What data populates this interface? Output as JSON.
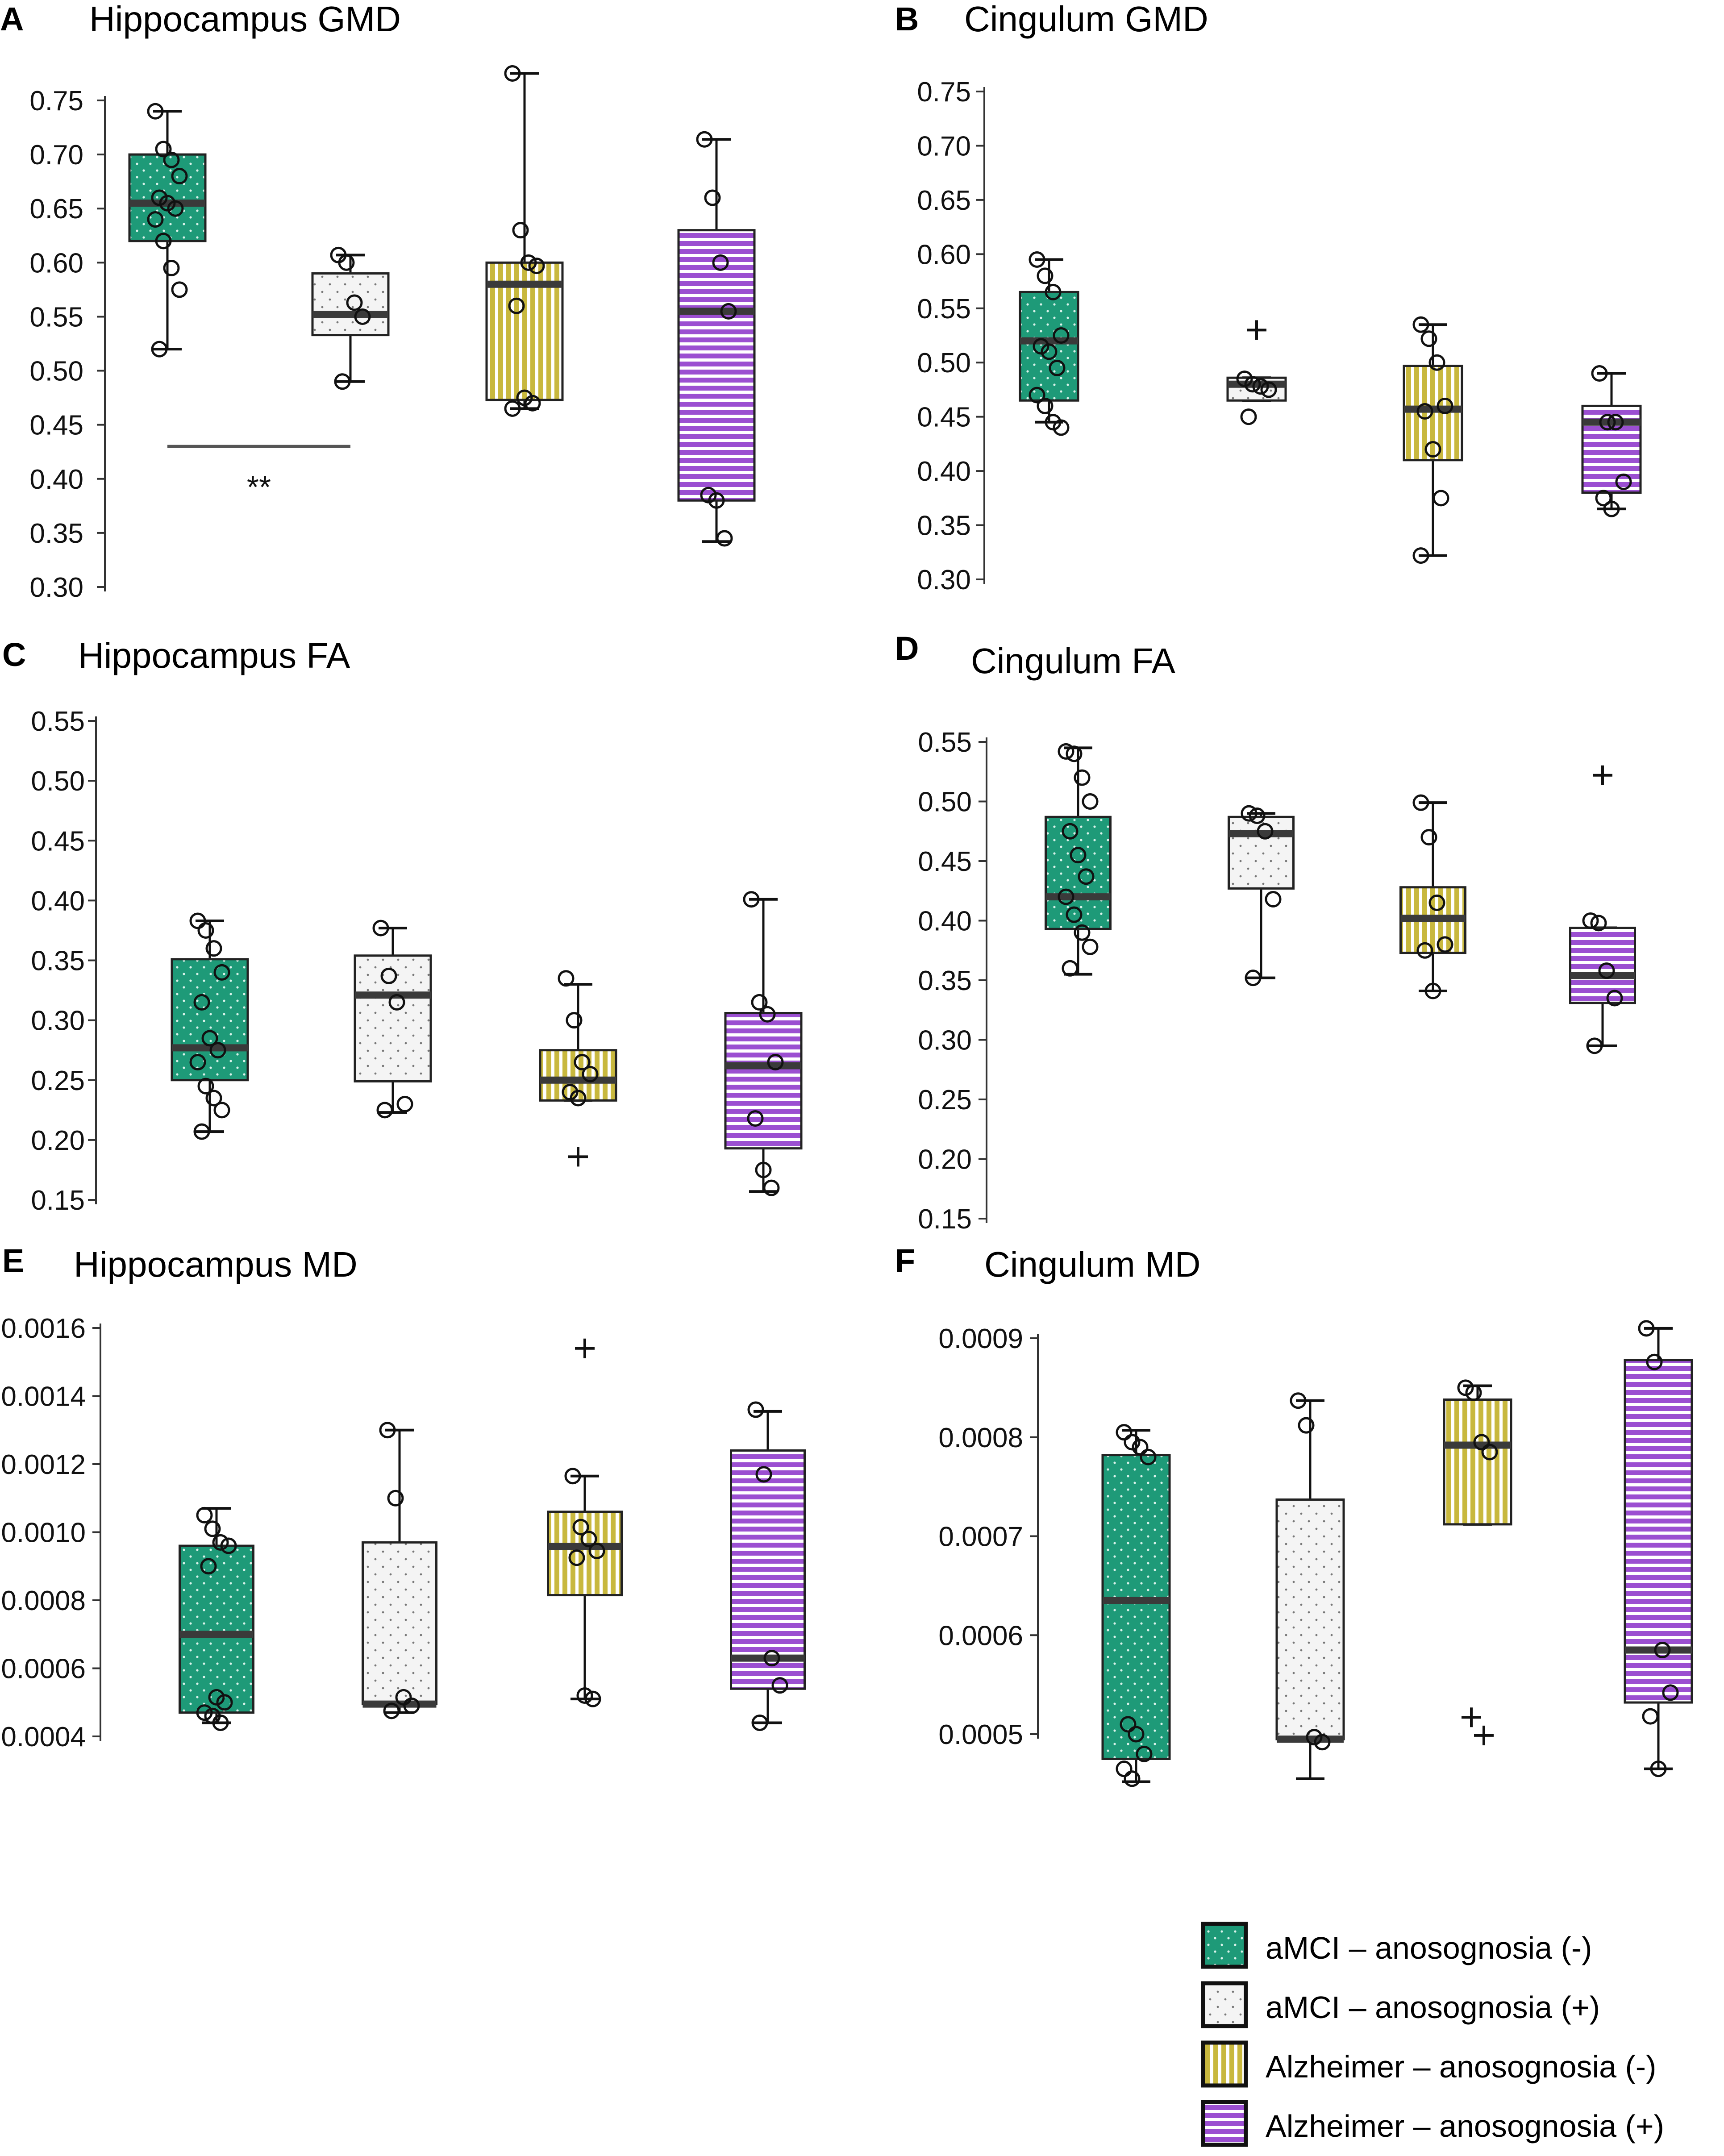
{
  "colors": {
    "group1": "#1e9a78",
    "group2": "#f2f2f2",
    "group3": "#c8b83e",
    "group4": "#9b4fd1",
    "median": "#3a3a3a",
    "line": "#111111",
    "sigbar": "#555555"
  },
  "legend": {
    "items": [
      {
        "label": "aMCI – anosognosia (-)",
        "pattern": "dots",
        "color_key": "group1"
      },
      {
        "label": "aMCI – anosognosia (+)",
        "pattern": "sparse-dots",
        "color_key": "group2"
      },
      {
        "label": "Alzheimer – anosognosia (-)",
        "pattern": "vertical-stripes",
        "color_key": "group3"
      },
      {
        "label": "Alzheimer – anosognosia (+)",
        "pattern": "horizontal-stripes",
        "color_key": "group4"
      }
    ]
  },
  "chart_data": [
    {
      "id": "A",
      "letter": "A",
      "title": "Hippocampus  GMD",
      "type": "box",
      "ylim": [
        0.3,
        0.75
      ],
      "yticks": [
        "0.30",
        "0.35",
        "0.40",
        "0.45",
        "0.50",
        "0.55",
        "0.60",
        "0.65",
        "0.70",
        "0.75"
      ],
      "significance": {
        "from_group": 1,
        "to_group": 2,
        "y": 0.43,
        "label": "**"
      },
      "groups": [
        {
          "q1": 0.62,
          "median": 0.655,
          "q3": 0.7,
          "whisker_low": 0.52,
          "whisker_high": 0.74,
          "points": [
            0.74,
            0.705,
            0.695,
            0.68,
            0.66,
            0.655,
            0.65,
            0.64,
            0.62,
            0.595,
            0.575,
            0.52
          ],
          "outliers": []
        },
        {
          "q1": 0.533,
          "median": 0.552,
          "q3": 0.59,
          "whisker_low": 0.49,
          "whisker_high": 0.607,
          "points": [
            0.607,
            0.6,
            0.563,
            0.55,
            0.49
          ],
          "outliers": []
        },
        {
          "q1": 0.473,
          "median": 0.58,
          "q3": 0.6,
          "whisker_low": 0.465,
          "whisker_high": 0.775,
          "points": [
            0.775,
            0.63,
            0.6,
            0.597,
            0.56,
            0.475,
            0.47,
            0.465
          ],
          "outliers": []
        },
        {
          "q1": 0.38,
          "median": 0.555,
          "q3": 0.63,
          "whisker_low": 0.342,
          "whisker_high": 0.714,
          "points": [
            0.714,
            0.66,
            0.6,
            0.555,
            0.385,
            0.38,
            0.345
          ],
          "outliers": []
        }
      ]
    },
    {
      "id": "B",
      "letter": "B",
      "title": "Cingulum  GMD",
      "type": "box",
      "ylim": [
        0.3,
        0.75
      ],
      "yticks": [
        "0.30",
        "0.35",
        "0.40",
        "0.45",
        "0.50",
        "0.55",
        "0.60",
        "0.65",
        "0.70",
        "0.75"
      ],
      "groups": [
        {
          "q1": 0.465,
          "median": 0.52,
          "q3": 0.565,
          "whisker_low": 0.445,
          "whisker_high": 0.595,
          "points": [
            0.595,
            0.58,
            0.565,
            0.525,
            0.515,
            0.51,
            0.495,
            0.47,
            0.46,
            0.445,
            0.44
          ],
          "outliers": []
        },
        {
          "q1": 0.465,
          "median": 0.48,
          "q3": 0.486,
          "whisker_low": 0.465,
          "whisker_high": 0.486,
          "points": [
            0.485,
            0.48,
            0.478,
            0.475,
            0.45
          ],
          "outliers": [
            0.53
          ]
        },
        {
          "q1": 0.41,
          "median": 0.457,
          "q3": 0.497,
          "whisker_low": 0.322,
          "whisker_high": 0.535,
          "points": [
            0.535,
            0.522,
            0.5,
            0.46,
            0.455,
            0.42,
            0.375,
            0.322
          ],
          "outliers": []
        },
        {
          "q1": 0.38,
          "median": 0.445,
          "q3": 0.46,
          "whisker_low": 0.365,
          "whisker_high": 0.49,
          "points": [
            0.49,
            0.445,
            0.445,
            0.39,
            0.375,
            0.365
          ],
          "outliers": []
        }
      ]
    },
    {
      "id": "C",
      "letter": "C",
      "title": "Hippocampus  FA",
      "type": "box",
      "ylim": [
        0.15,
        0.55
      ],
      "yticks": [
        "0.15",
        "0.20",
        "0.25",
        "0.30",
        "0.35",
        "0.40",
        "0.45",
        "0.50",
        "0.55"
      ],
      "groups": [
        {
          "q1": 0.25,
          "median": 0.277,
          "q3": 0.351,
          "whisker_low": 0.207,
          "whisker_high": 0.383,
          "points": [
            0.383,
            0.375,
            0.36,
            0.34,
            0.315,
            0.285,
            0.275,
            0.265,
            0.245,
            0.235,
            0.225,
            0.207
          ],
          "outliers": []
        },
        {
          "q1": 0.249,
          "median": 0.321,
          "q3": 0.354,
          "whisker_low": 0.223,
          "whisker_high": 0.377,
          "points": [
            0.377,
            0.337,
            0.315,
            0.23,
            0.225
          ],
          "outliers": []
        },
        {
          "q1": 0.233,
          "median": 0.25,
          "q3": 0.275,
          "whisker_low": 0.233,
          "whisker_high": 0.33,
          "points": [
            0.335,
            0.3,
            0.265,
            0.255,
            0.24,
            0.235
          ],
          "outliers": [
            0.186
          ]
        },
        {
          "q1": 0.193,
          "median": 0.262,
          "q3": 0.306,
          "whisker_low": 0.157,
          "whisker_high": 0.401,
          "points": [
            0.401,
            0.315,
            0.305,
            0.265,
            0.218,
            0.175,
            0.16
          ],
          "outliers": []
        }
      ]
    },
    {
      "id": "D",
      "letter": "D",
      "title": "Cingulum  FA",
      "type": "box",
      "ylim": [
        0.15,
        0.55
      ],
      "yticks": [
        "0.15",
        "0.20",
        "0.25",
        "0.30",
        "0.35",
        "0.40",
        "0.45",
        "0.50",
        "0.55"
      ],
      "groups": [
        {
          "q1": 0.393,
          "median": 0.42,
          "q3": 0.487,
          "whisker_low": 0.355,
          "whisker_high": 0.545,
          "points": [
            0.542,
            0.54,
            0.52,
            0.5,
            0.475,
            0.455,
            0.437,
            0.42,
            0.405,
            0.39,
            0.378,
            0.36
          ],
          "outliers": []
        },
        {
          "q1": 0.427,
          "median": 0.473,
          "q3": 0.487,
          "whisker_low": 0.352,
          "whisker_high": 0.49,
          "points": [
            0.49,
            0.488,
            0.475,
            0.418,
            0.352
          ],
          "outliers": []
        },
        {
          "q1": 0.373,
          "median": 0.402,
          "q3": 0.428,
          "whisker_low": 0.341,
          "whisker_high": 0.499,
          "points": [
            0.499,
            0.47,
            0.415,
            0.38,
            0.375,
            0.341
          ],
          "outliers": []
        },
        {
          "q1": 0.331,
          "median": 0.354,
          "q3": 0.394,
          "whisker_low": 0.295,
          "whisker_high": 0.394,
          "points": [
            0.4,
            0.398,
            0.358,
            0.335,
            0.295
          ],
          "outliers": [
            0.522
          ]
        }
      ]
    },
    {
      "id": "E",
      "letter": "E",
      "title": "Hippocampus  MD",
      "type": "box",
      "ylim": [
        0.0004,
        0.0016
      ],
      "yticks": [
        "0.0004",
        "0.0006",
        "0.0008",
        "0.0010",
        "0.0012",
        "0.0014",
        "0.0016"
      ],
      "groups": [
        {
          "q1": 0.00047,
          "median": 0.0007,
          "q3": 0.00096,
          "whisker_low": 0.00044,
          "whisker_high": 0.00107,
          "points": [
            0.00105,
            0.00101,
            0.00097,
            0.00096,
            0.0009,
            0.000515,
            0.0005,
            0.00047,
            0.00046,
            0.00044
          ],
          "outliers": []
        },
        {
          "q1": 0.000495,
          "median": 0.000495,
          "q3": 0.00097,
          "whisker_low": 0.00047,
          "whisker_high": 0.0013,
          "points": [
            0.0013,
            0.0011,
            0.000515,
            0.00049,
            0.000475
          ],
          "outliers": []
        },
        {
          "q1": 0.000815,
          "median": 0.000958,
          "q3": 0.00106,
          "whisker_low": 0.00051,
          "whisker_high": 0.001165,
          "points": [
            0.001165,
            0.001015,
            0.00098,
            0.000945,
            0.000925,
            0.00052,
            0.00051
          ],
          "outliers": [
            0.00154
          ]
        },
        {
          "q1": 0.00054,
          "median": 0.00063,
          "q3": 0.00124,
          "whisker_low": 0.00044,
          "whisker_high": 0.001355,
          "points": [
            0.00136,
            0.00117,
            0.00063,
            0.00055,
            0.00044
          ],
          "outliers": []
        }
      ]
    },
    {
      "id": "F",
      "letter": "F",
      "title": "Cingulum  MD",
      "type": "box",
      "ylim": [
        0.0005,
        0.0009
      ],
      "yticks": [
        "0.0005",
        "0.0006",
        "0.0007",
        "0.0008",
        "0.0009"
      ],
      "groups": [
        {
          "q1": 0.000475,
          "median": 0.000635,
          "q3": 0.000782,
          "whisker_low": 0.000452,
          "whisker_high": 0.000807,
          "points": [
            0.000805,
            0.000795,
            0.00079,
            0.00078,
            0.00051,
            0.0005,
            0.00048,
            0.000465,
            0.000455
          ],
          "outliers": []
        },
        {
          "q1": 0.000495,
          "median": 0.000495,
          "q3": 0.000737,
          "whisker_low": 0.000455,
          "whisker_high": 0.000837,
          "points": [
            0.000837,
            0.000812,
            0.000497,
            0.000492
          ],
          "outliers": []
        },
        {
          "q1": 0.000712,
          "median": 0.000792,
          "q3": 0.000838,
          "whisker_low": 0.000712,
          "whisker_high": 0.000852,
          "points": [
            0.00085,
            0.000845,
            0.000795,
            0.000785
          ],
          "outliers": [
            0.000517,
            0.000505
          ]
        },
        {
          "q1": 0.000532,
          "median": 0.000585,
          "q3": 0.000878,
          "whisker_low": 0.000465,
          "whisker_high": 0.00091,
          "points": [
            0.00091,
            0.000876,
            0.000585,
            0.000542,
            0.000518,
            0.000465
          ],
          "outliers": []
        }
      ]
    }
  ]
}
